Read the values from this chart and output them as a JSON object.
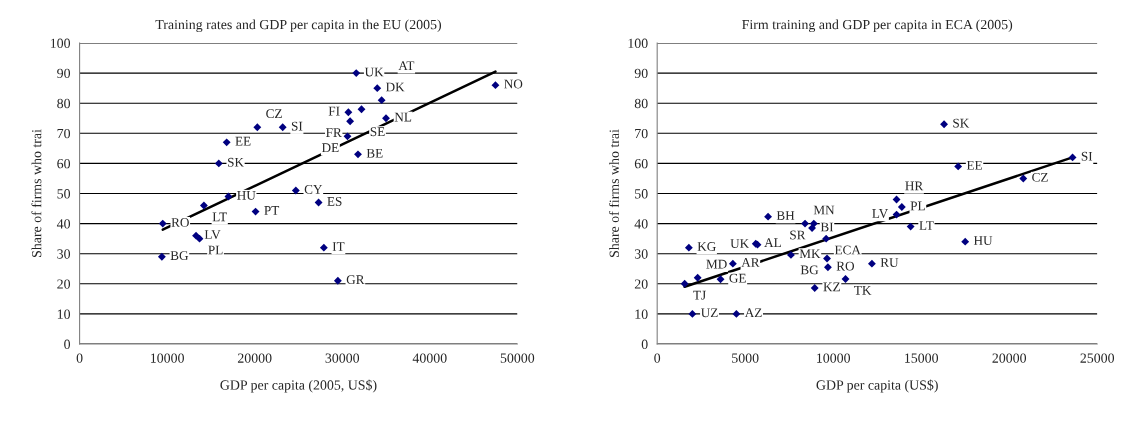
{
  "chart_data": [
    {
      "type": "scatter",
      "title": "Training rates and GDP per capita in the EU (2005)",
      "xlabel": "GDP per capita (2005, US$)",
      "ylabel": "Share of firms who trai",
      "xlim": [
        0,
        50000
      ],
      "xticks": [
        0,
        10000,
        20000,
        30000,
        40000,
        50000
      ],
      "ylim": [
        0,
        100
      ],
      "yticks": [
        0,
        10,
        20,
        30,
        40,
        50,
        60,
        70,
        80,
        90,
        100
      ],
      "grid": "y",
      "series": [
        {
          "marker": "diamond",
          "color": "#000080",
          "x": [
            31600,
            34000,
            34500,
            32200,
            30700,
            30900,
            35000,
            30600,
            31800,
            47500,
            20300,
            23200,
            16800,
            15900,
            24700,
            27300,
            17000,
            14200,
            20100,
            9500,
            13300,
            13700,
            9400,
            27900,
            29500
          ],
          "values": [
            90,
            85,
            81,
            78,
            77,
            74,
            75,
            69,
            63,
            86,
            72,
            72,
            67,
            60,
            51,
            47,
            49,
            46,
            44,
            40,
            36,
            35,
            29,
            32,
            21
          ]
        },
        {
          "type": "line",
          "color": "#000000",
          "x": [
            9500,
            47500
          ],
          "values": [
            38,
            90.5
          ]
        }
      ],
      "annotations": [
        {
          "text": "UK",
          "x": 31600,
          "y": 90
        },
        {
          "text": "DK",
          "x": 34000,
          "y": 85
        },
        {
          "text": "AT",
          "x": 34500,
          "y": 81
        },
        {
          "text": "SE",
          "x": 32200,
          "y": 78
        },
        {
          "text": "FI",
          "x": 30700,
          "y": 77
        },
        {
          "text": "FR",
          "x": 30900,
          "y": 74
        },
        {
          "text": "NL",
          "x": 35000,
          "y": 75
        },
        {
          "text": "DE",
          "x": 30600,
          "y": 69
        },
        {
          "text": "BE",
          "x": 31800,
          "y": 63
        },
        {
          "text": "NO",
          "x": 47500,
          "y": 86
        },
        {
          "text": "CZ",
          "x": 20300,
          "y": 72
        },
        {
          "text": "SI",
          "x": 23200,
          "y": 72
        },
        {
          "text": "EE",
          "x": 16800,
          "y": 67
        },
        {
          "text": "SK",
          "x": 15900,
          "y": 60
        },
        {
          "text": "CY",
          "x": 24700,
          "y": 51
        },
        {
          "text": "ES",
          "x": 27300,
          "y": 47
        },
        {
          "text": "HU",
          "x": 17000,
          "y": 49
        },
        {
          "text": "LT",
          "x": 14200,
          "y": 46
        },
        {
          "text": "PT",
          "x": 20100,
          "y": 44
        },
        {
          "text": "RO",
          "x": 9500,
          "y": 40
        },
        {
          "text": "LV",
          "x": 13300,
          "y": 36
        },
        {
          "text": "PL",
          "x": 13700,
          "y": 35
        },
        {
          "text": "BG",
          "x": 9400,
          "y": 29
        },
        {
          "text": "IT",
          "x": 27900,
          "y": 32
        },
        {
          "text": "GR",
          "x": 29500,
          "y": 21
        }
      ]
    },
    {
      "type": "scatter",
      "title": "Firm training and GDP per capita in ECA (2005)",
      "xlabel": "GDP per capita (US$)",
      "ylabel": "Share of firms who trai",
      "xlim": [
        0,
        25000
      ],
      "xticks": [
        0,
        5000,
        10000,
        15000,
        20000,
        25000
      ],
      "ylim": [
        0,
        100
      ],
      "yticks": [
        0,
        10,
        20,
        30,
        40,
        50,
        60,
        70,
        80,
        90,
        100
      ],
      "grid": "y",
      "series": [
        {
          "marker": "diamond",
          "color": "#000080",
          "x": [
            16300,
            17100,
            23600,
            20800,
            13600,
            13900,
            13600,
            14400,
            17500,
            1560,
            1800,
            2300,
            3600,
            2000,
            4500,
            4300,
            5600,
            5700,
            6300,
            7600,
            8400,
            8900,
            8800,
            9600,
            9650,
            9700,
            8950,
            10700,
            12200
          ],
          "values": [
            73,
            59,
            62,
            55,
            48,
            45.5,
            43,
            39,
            34,
            20,
            32,
            22,
            21.5,
            10,
            10,
            26.7,
            33.3,
            33,
            42.3,
            29.6,
            40,
            40,
            38.5,
            35,
            28.4,
            25.5,
            18.6,
            21.6,
            26.7
          ]
        },
        {
          "type": "line",
          "color": "#000000",
          "x": [
            1560,
            23600
          ],
          "values": [
            19,
            62
          ]
        }
      ],
      "annotations": [
        {
          "text": "SK",
          "x": 16300,
          "y": 73
        },
        {
          "text": "EE",
          "x": 17100,
          "y": 59
        },
        {
          "text": "SI",
          "x": 23600,
          "y": 62
        },
        {
          "text": "CZ",
          "x": 20800,
          "y": 55
        },
        {
          "text": "HR",
          "x": 13600,
          "y": 48
        },
        {
          "text": "PL",
          "x": 13900,
          "y": 45.5
        },
        {
          "text": "LV",
          "x": 13600,
          "y": 43
        },
        {
          "text": "LT",
          "x": 14400,
          "y": 39
        },
        {
          "text": "HU",
          "x": 17500,
          "y": 34
        },
        {
          "text": "TJ",
          "x": 1560,
          "y": 20
        },
        {
          "text": "KG",
          "x": 1800,
          "y": 32
        },
        {
          "text": "MD",
          "x": 2300,
          "y": 22
        },
        {
          "text": "GE",
          "x": 3600,
          "y": 21.5
        },
        {
          "text": "UZ",
          "x": 2000,
          "y": 10
        },
        {
          "text": "AZ",
          "x": 4500,
          "y": 10
        },
        {
          "text": "AR",
          "x": 4300,
          "y": 26.7
        },
        {
          "text": "AL",
          "x": 5600,
          "y": 33.3
        },
        {
          "text": "UK",
          "x": 5700,
          "y": 33
        },
        {
          "text": "BH",
          "x": 6300,
          "y": 42.3
        },
        {
          "text": "MK",
          "x": 7600,
          "y": 29.6
        },
        {
          "text": "MN",
          "x": 8400,
          "y": 40
        },
        {
          "text": "SR",
          "x": 8900,
          "y": 40
        },
        {
          "text": "BI",
          "x": 8800,
          "y": 38.5
        },
        {
          "text": "ECA",
          "x": 9600,
          "y": 35
        },
        {
          "text": "BG",
          "x": 9650,
          "y": 28.4
        },
        {
          "text": "RO",
          "x": 9700,
          "y": 25.5
        },
        {
          "text": "KZ",
          "x": 8950,
          "y": 18.6
        },
        {
          "text": "TK",
          "x": 10700,
          "y": 21.6
        },
        {
          "text": "RU",
          "x": 12200,
          "y": 26.7
        }
      ]
    }
  ]
}
